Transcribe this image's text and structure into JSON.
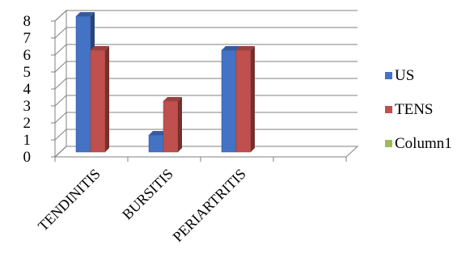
{
  "chart_data": {
    "type": "bar",
    "title": "",
    "xlabel": "",
    "ylabel": "",
    "categories": [
      "TENDINITIS",
      "BURSITIS",
      "PERIARTRITIS",
      ""
    ],
    "series": [
      {
        "name": "US",
        "values": [
          8,
          1,
          6,
          null
        ],
        "color": "#4472C4"
      },
      {
        "name": "TENS",
        "values": [
          6,
          3,
          6,
          null
        ],
        "color": "#C0504D"
      },
      {
        "name": "Column1",
        "values": [
          null,
          null,
          null,
          null
        ],
        "color": "#9BBB59"
      }
    ],
    "ylim": [
      0,
      8
    ],
    "yticks": [
      0,
      1,
      2,
      3,
      4,
      5,
      6,
      7,
      8
    ],
    "grid": true,
    "legend_position": "right",
    "style": "3d-column"
  }
}
